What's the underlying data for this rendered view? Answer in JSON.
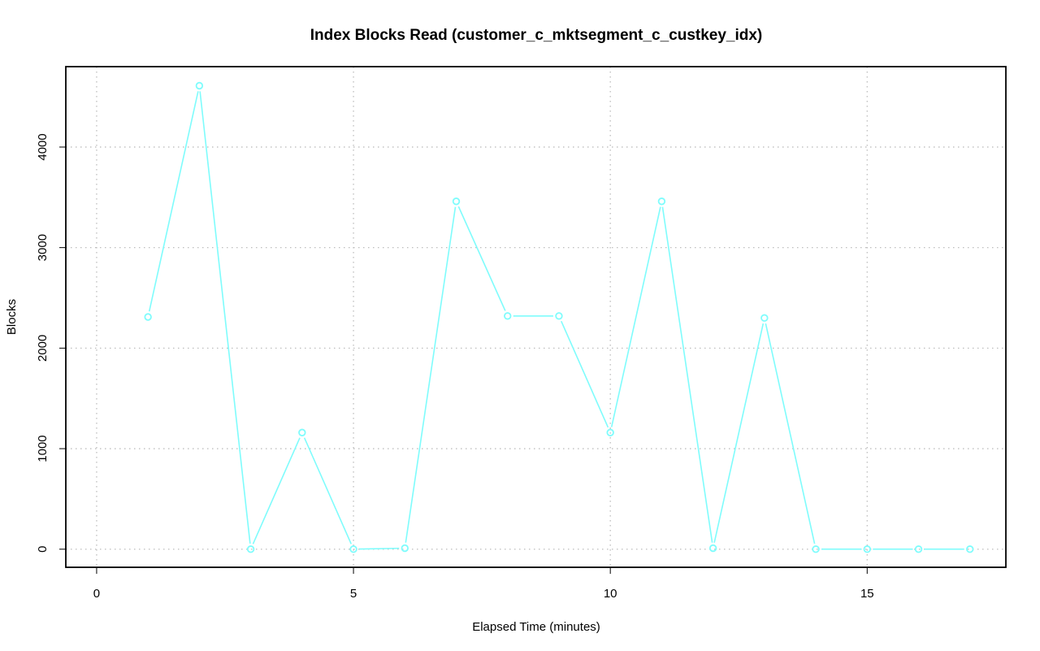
{
  "chart_data": {
    "type": "line",
    "title": "Index Blocks Read (customer_c_mktsegment_c_custkey_idx)",
    "xlabel": "Elapsed Time (minutes)",
    "ylabel": "Blocks",
    "xlim": [
      -0.6,
      17.7
    ],
    "ylim": [
      -180,
      4800
    ],
    "x_ticks": [
      0,
      5,
      10,
      15
    ],
    "y_ticks": [
      0,
      1000,
      2000,
      3000,
      4000
    ],
    "grid": true,
    "line_color": "#7ffcfc",
    "x": [
      1,
      2,
      3,
      4,
      5,
      6,
      7,
      8,
      9,
      10,
      11,
      12,
      13,
      14,
      15,
      16,
      17
    ],
    "series": [
      {
        "values": [
          2310,
          4610,
          0,
          1160,
          0,
          10,
          3460,
          2320,
          2320,
          1160,
          3460,
          10,
          2300,
          0,
          0,
          0,
          0
        ]
      }
    ]
  }
}
